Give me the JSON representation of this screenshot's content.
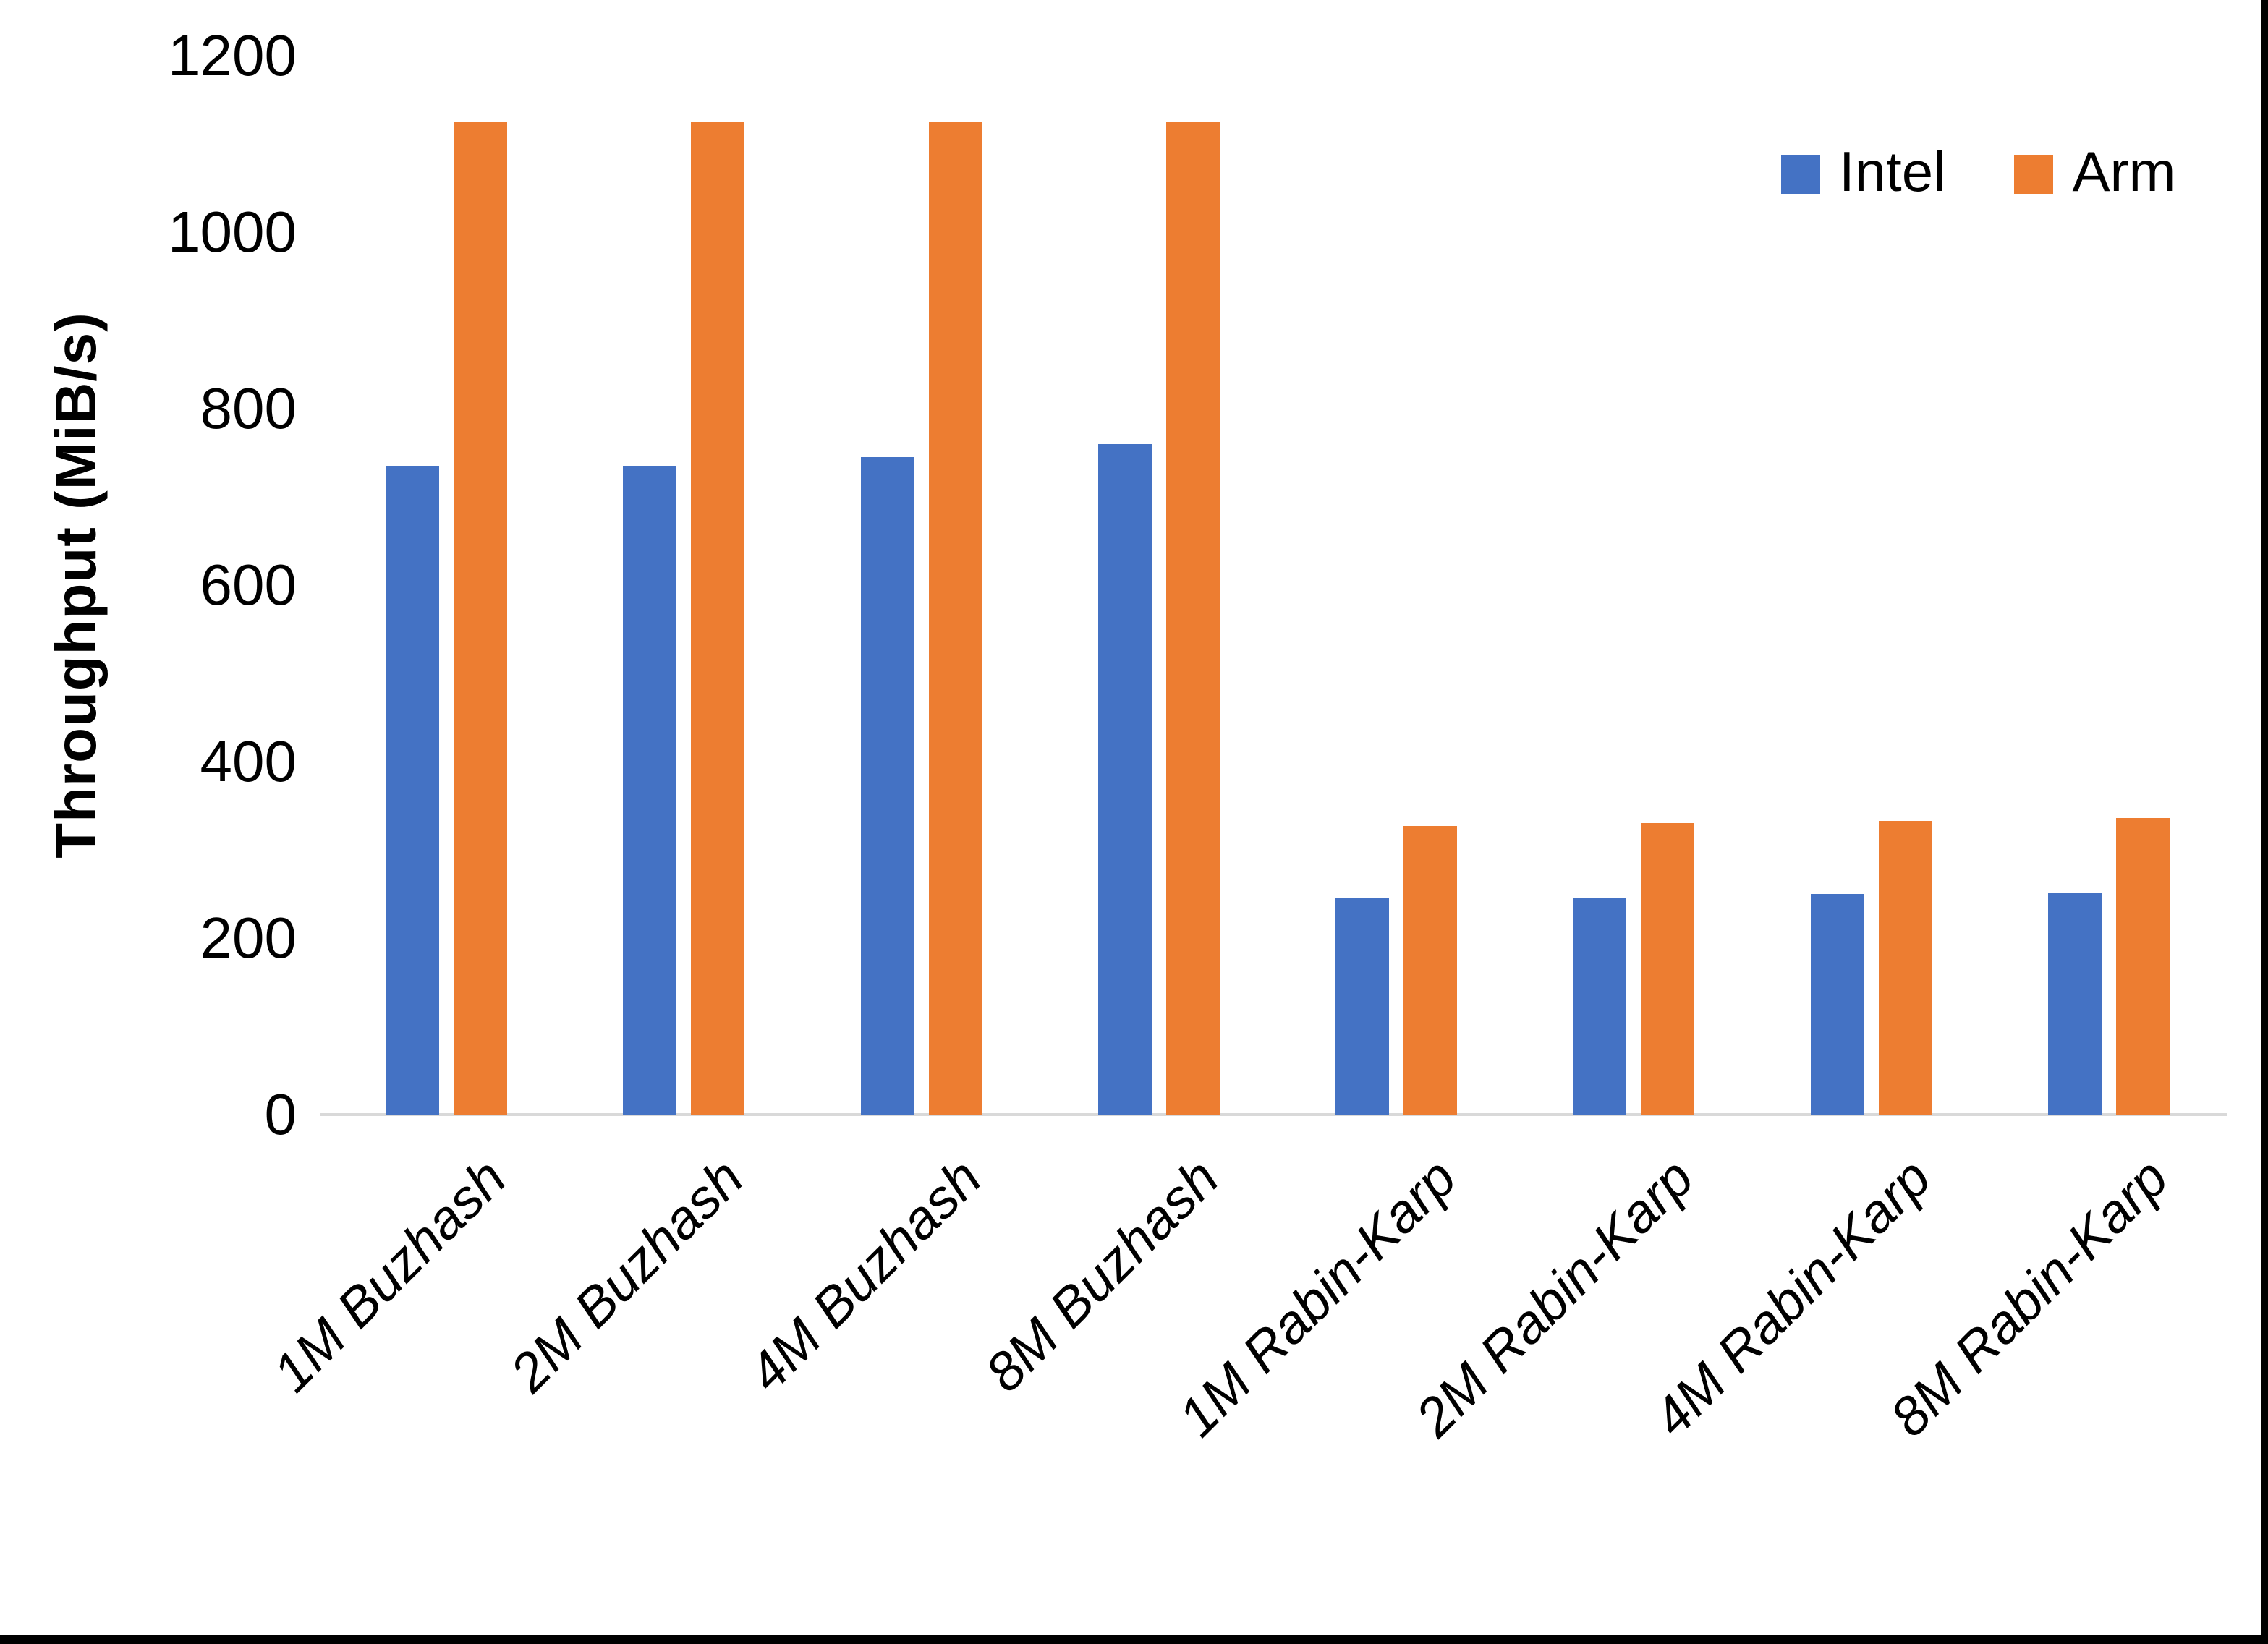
{
  "chart_data": {
    "type": "bar",
    "title": "",
    "xlabel": "",
    "ylabel": "Throughput (MiB/s)",
    "ylim": [
      0,
      1200
    ],
    "yticks": [
      0,
      200,
      400,
      600,
      800,
      1000,
      1200
    ],
    "grid": false,
    "legend_position": "top-right",
    "categories": [
      "1M Buzhash",
      "2M Buzhash",
      "4M Buzhash",
      "8M Buzhash",
      "1M Rabin-Karp",
      "2M Rabin-Karp",
      "4M Rabin-Karp",
      "8M Rabin-Karp"
    ],
    "series": [
      {
        "name": "Intel",
        "color": "#4472C4",
        "values": [
          735,
          735,
          745,
          760,
          245,
          246,
          250,
          251
        ]
      },
      {
        "name": "Arm",
        "color": "#ED7D31",
        "values": [
          1125,
          1125,
          1125,
          1125,
          327,
          330,
          333,
          336
        ]
      }
    ]
  },
  "colors": {
    "background": "#FFFFFF",
    "axis_line": "#D9D9D9",
    "text": "#000000",
    "edge_border": "#000000"
  }
}
